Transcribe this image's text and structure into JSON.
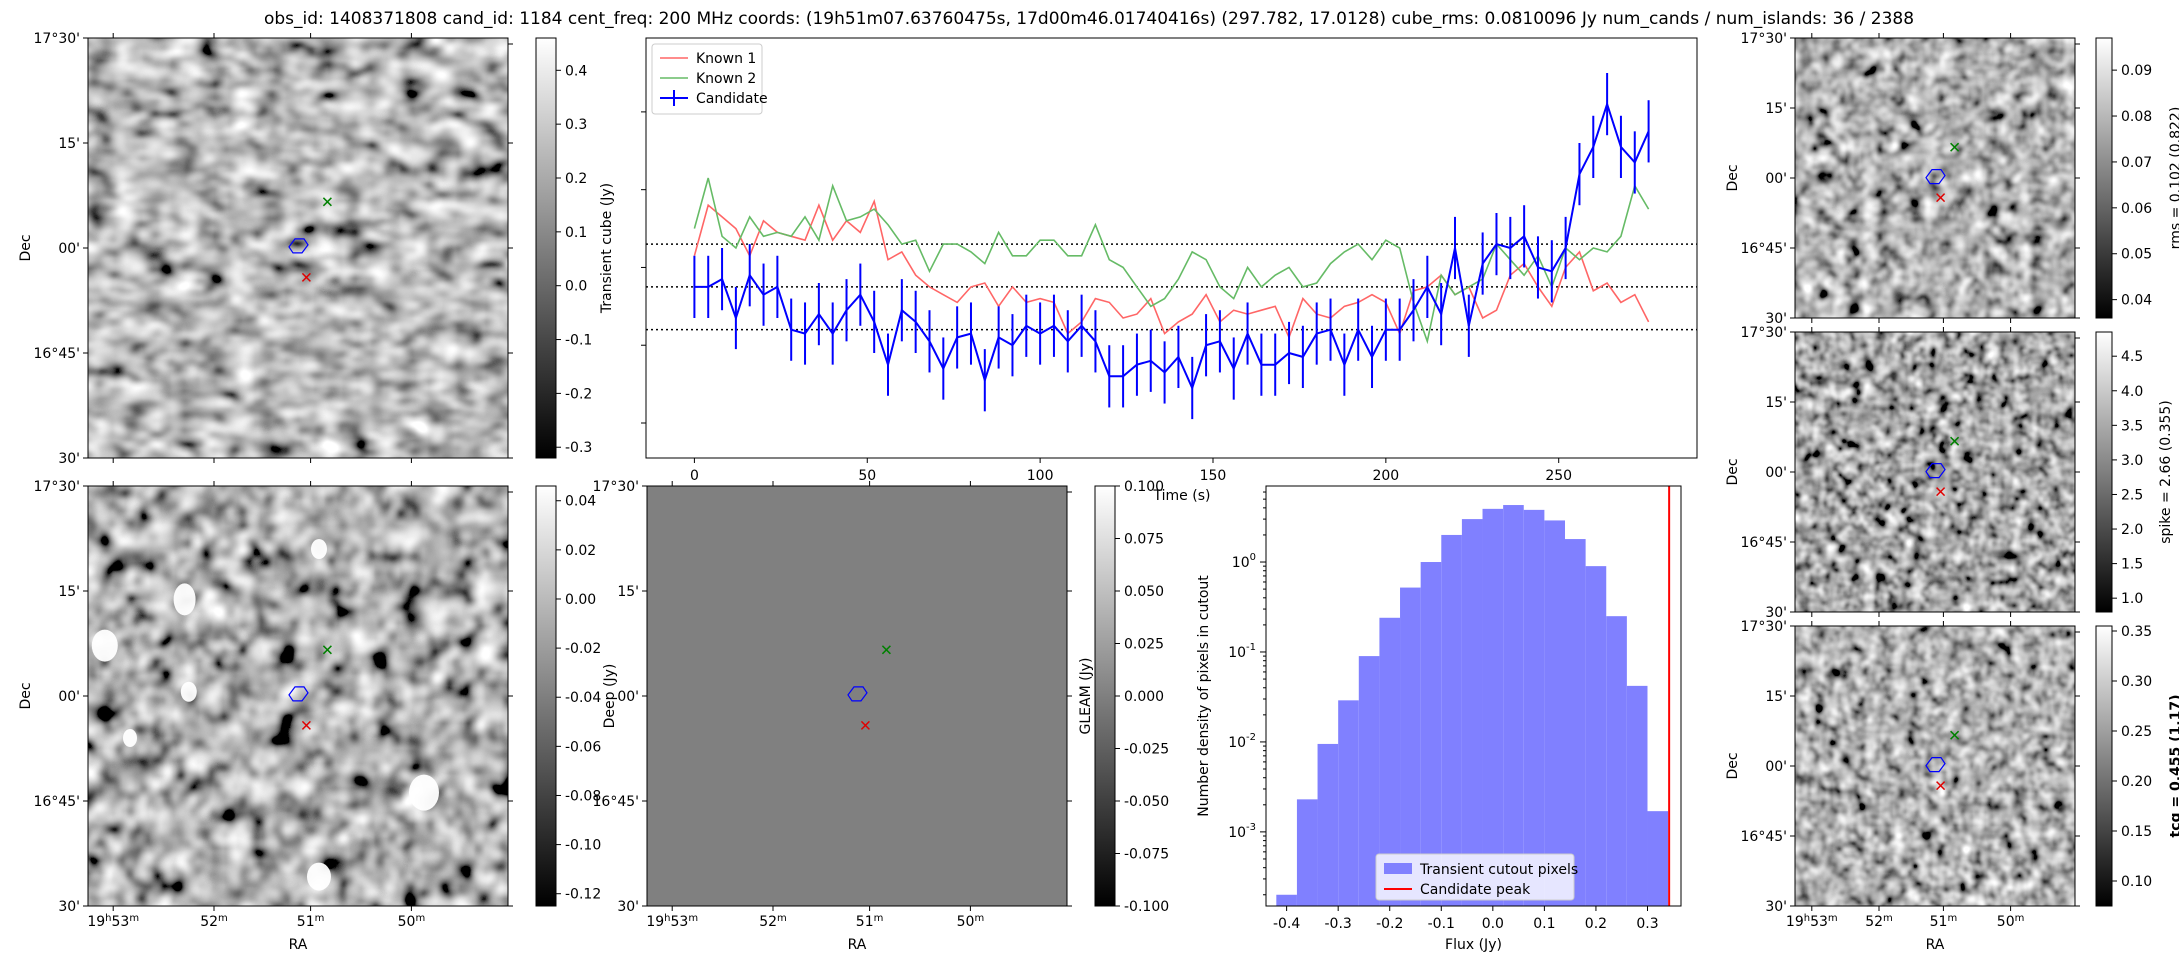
{
  "suptitle": "obs_id: 1408371808 cand_id: 1184 cent_freq: 200 MHz coords: (19h51m07.63760475s, 17d00m46.01740416s) (297.782, 17.0128) cube_rms: 0.0810096 Jy num_cands / num_islands: 36 / 2388",
  "sky_axes": {
    "dec_ticks": [
      "17°30'",
      "15'",
      "00'",
      "16°45'",
      "30'"
    ],
    "ra_ticks": [
      "19h53m",
      "52m",
      "51m",
      "50m"
    ],
    "xlabel": "RA",
    "ylabel": "Dec"
  },
  "colors": {
    "candidate": "#0000ff",
    "known1": "#ff6666",
    "known2": "#66bb66",
    "histogram": "#8080ff",
    "peak": "#ff0000",
    "marker_red": "#e00000",
    "marker_green": "#008000"
  },
  "images": {
    "transient": {
      "cbar_label": "Transient cube (Jy)",
      "cbar_ticks": [
        "0.4",
        "0.3",
        "0.2",
        "0.1",
        "0.0",
        "-0.1",
        "-0.2",
        "-0.3"
      ],
      "cmap_range": [
        -0.32,
        0.46
      ]
    },
    "deep": {
      "cbar_label": "Deep (Jy)",
      "cbar_ticks": [
        "0.04",
        "0.02",
        "0.00",
        "-0.02",
        "-0.04",
        "-0.06",
        "-0.08",
        "-0.10",
        "-0.12"
      ],
      "cmap_range": [
        -0.125,
        0.046
      ]
    },
    "gleam": {
      "cbar_label": "GLEAM (Jy)",
      "cbar_ticks": [
        "0.100",
        "0.075",
        "0.050",
        "0.025",
        "0.000",
        "-0.025",
        "-0.050",
        "-0.075",
        "-0.100"
      ],
      "cmap_range": [
        -0.1,
        0.1
      ]
    },
    "rms": {
      "cbar_label": "rms = 0.102 (0.822)",
      "cbar_ticks": [
        "0.09",
        "0.08",
        "0.07",
        "0.06",
        "0.05",
        "0.04"
      ],
      "cmap_range": [
        0.036,
        0.097
      ]
    },
    "spike": {
      "cbar_label": "spike = 2.66 (0.355)",
      "cbar_ticks": [
        "4.5",
        "4.0",
        "3.5",
        "3.0",
        "2.5",
        "2.0",
        "1.5",
        "1.0"
      ],
      "cmap_range": [
        0.8,
        4.85
      ]
    },
    "tcg": {
      "cbar_label": "tcg = 0.455 (1.17)",
      "cbar_ticks": [
        "0.35",
        "0.30",
        "0.25",
        "0.20",
        "0.15",
        "0.10"
      ],
      "cmap_range": [
        0.075,
        0.355
      ]
    }
  },
  "chart_data": [
    {
      "type": "line",
      "xlabel": "Time (s)",
      "xlim": [
        -14,
        290
      ],
      "ylim": [
        -0.44,
        0.64
      ],
      "xticks": [
        0,
        50,
        100,
        150,
        200,
        250
      ],
      "hlines": [
        -0.11,
        0.0,
        0.11
      ],
      "legend": [
        "Known 1",
        "Known 2",
        "Candidate"
      ],
      "series": [
        {
          "name": "Candidate",
          "type": "errorbar",
          "x": [
            0,
            4,
            8,
            12,
            16,
            20,
            24,
            28,
            32,
            36,
            40,
            44,
            48,
            52,
            56,
            60,
            64,
            68,
            72,
            76,
            80,
            84,
            88,
            92,
            96,
            100,
            104,
            108,
            112,
            116,
            120,
            124,
            128,
            132,
            136,
            140,
            144,
            148,
            152,
            156,
            160,
            164,
            168,
            172,
            176,
            180,
            184,
            188,
            192,
            196,
            200,
            204,
            208,
            212,
            216,
            220,
            224,
            228,
            232,
            236,
            240,
            244,
            248,
            252,
            256,
            260,
            264,
            268,
            272,
            276
          ],
          "y": [
            0.0,
            0.0,
            0.02,
            -0.08,
            0.03,
            -0.02,
            0.0,
            -0.11,
            -0.12,
            -0.07,
            -0.12,
            -0.06,
            -0.02,
            -0.09,
            -0.2,
            -0.06,
            -0.09,
            -0.14,
            -0.21,
            -0.13,
            -0.12,
            -0.24,
            -0.13,
            -0.15,
            -0.1,
            -0.12,
            -0.1,
            -0.14,
            -0.1,
            -0.14,
            -0.23,
            -0.23,
            -0.2,
            -0.19,
            -0.22,
            -0.18,
            -0.26,
            -0.15,
            -0.14,
            -0.21,
            -0.12,
            -0.2,
            -0.2,
            -0.17,
            -0.18,
            -0.12,
            -0.11,
            -0.2,
            -0.11,
            -0.18,
            -0.11,
            -0.11,
            -0.06,
            0.0,
            -0.07,
            0.1,
            -0.1,
            0.06,
            0.11,
            0.1,
            0.13,
            0.05,
            0.04,
            0.1,
            0.29,
            0.36,
            0.47,
            0.36,
            0.32,
            0.4
          ],
          "err": [
            0.08,
            0.08,
            0.08,
            0.08,
            0.08,
            0.08,
            0.08,
            0.08,
            0.08,
            0.08,
            0.08,
            0.08,
            0.08,
            0.08,
            0.08,
            0.08,
            0.08,
            0.08,
            0.08,
            0.08,
            0.08,
            0.08,
            0.08,
            0.08,
            0.08,
            0.08,
            0.08,
            0.08,
            0.08,
            0.08,
            0.08,
            0.08,
            0.08,
            0.08,
            0.08,
            0.08,
            0.08,
            0.08,
            0.08,
            0.08,
            0.08,
            0.08,
            0.08,
            0.08,
            0.08,
            0.08,
            0.08,
            0.08,
            0.08,
            0.08,
            0.08,
            0.08,
            0.08,
            0.08,
            0.08,
            0.08,
            0.08,
            0.08,
            0.08,
            0.08,
            0.08,
            0.08,
            0.08,
            0.08,
            0.08,
            0.08,
            0.08,
            0.08,
            0.08,
            0.08
          ]
        },
        {
          "name": "Known 1",
          "type": "line",
          "x": [
            0,
            4,
            8,
            12,
            16,
            20,
            24,
            28,
            32,
            36,
            40,
            44,
            48,
            52,
            56,
            60,
            64,
            68,
            72,
            76,
            80,
            84,
            88,
            92,
            96,
            100,
            104,
            108,
            112,
            116,
            120,
            124,
            128,
            132,
            136,
            140,
            144,
            148,
            152,
            156,
            160,
            164,
            168,
            172,
            176,
            180,
            184,
            188,
            192,
            196,
            200,
            204,
            208,
            212,
            216,
            220,
            224,
            228,
            232,
            236,
            240,
            244,
            248,
            252,
            256,
            260,
            264,
            268,
            272,
            276
          ],
          "y": [
            0.08,
            0.21,
            0.18,
            0.15,
            0.08,
            0.17,
            0.14,
            0.13,
            0.12,
            0.21,
            0.12,
            0.17,
            0.14,
            0.22,
            0.07,
            0.09,
            0.03,
            0.0,
            -0.02,
            -0.04,
            0.0,
            0.01,
            -0.05,
            0.0,
            -0.04,
            -0.03,
            -0.04,
            -0.12,
            -0.09,
            -0.03,
            -0.04,
            -0.08,
            -0.07,
            -0.03,
            -0.12,
            -0.09,
            -0.07,
            -0.02,
            -0.09,
            -0.06,
            -0.07,
            -0.06,
            -0.05,
            -0.13,
            -0.03,
            -0.07,
            -0.08,
            -0.05,
            -0.04,
            -0.02,
            -0.04,
            -0.12,
            -0.01,
            0.0,
            0.03,
            -0.02,
            0.0,
            -0.08,
            -0.06,
            0.03,
            0.06,
            0.0,
            -0.05,
            0.05,
            0.09,
            -0.01,
            0.01,
            -0.04,
            -0.02,
            -0.09
          ]
        },
        {
          "name": "Known 2",
          "type": "line",
          "x": [
            0,
            4,
            8,
            12,
            16,
            20,
            24,
            28,
            32,
            36,
            40,
            44,
            48,
            52,
            56,
            60,
            64,
            68,
            72,
            76,
            80,
            84,
            88,
            92,
            96,
            100,
            104,
            108,
            112,
            116,
            120,
            124,
            128,
            132,
            136,
            140,
            144,
            148,
            152,
            156,
            160,
            164,
            168,
            172,
            176,
            180,
            184,
            188,
            192,
            196,
            200,
            204,
            208,
            212,
            216,
            220,
            224,
            228,
            232,
            236,
            240,
            244,
            248,
            252,
            256,
            260,
            264,
            268,
            272,
            276
          ],
          "y": [
            0.15,
            0.28,
            0.13,
            0.1,
            0.18,
            0.13,
            0.14,
            0.13,
            0.18,
            0.12,
            0.26,
            0.17,
            0.18,
            0.2,
            0.16,
            0.11,
            0.12,
            0.04,
            0.11,
            0.11,
            0.09,
            0.06,
            0.14,
            0.08,
            0.08,
            0.12,
            0.12,
            0.08,
            0.08,
            0.16,
            0.07,
            0.05,
            0.0,
            -0.05,
            -0.03,
            0.02,
            0.09,
            0.07,
            0.0,
            -0.03,
            0.05,
            0.0,
            0.03,
            0.05,
            0.0,
            0.01,
            0.06,
            0.09,
            0.11,
            0.07,
            0.12,
            0.1,
            -0.04,
            -0.14,
            0.03,
            -0.02,
            0.0,
            0.02,
            0.11,
            0.07,
            0.03,
            0.08,
            0.0,
            0.1,
            0.07,
            0.1,
            0.09,
            0.13,
            0.26,
            0.2
          ]
        }
      ]
    },
    {
      "type": "bar",
      "ylabel": "Number density of pixels in cutout",
      "xlabel": "Flux (Jy)",
      "yscale": "log",
      "ylim": [
        0.00015,
        7
      ],
      "xlim": [
        -0.44,
        0.365
      ],
      "xticks": [
        "-0.4",
        "-0.3",
        "-0.2",
        "-0.1",
        "0.0",
        "0.1",
        "0.2",
        "0.3"
      ],
      "yticks": [
        "10^0",
        "10^-1",
        "10^-2",
        "10^-3"
      ],
      "bin_edges": [
        -0.42,
        -0.38,
        -0.34,
        -0.3,
        -0.26,
        -0.22,
        -0.18,
        -0.14,
        -0.1,
        -0.06,
        -0.02,
        0.02,
        0.06,
        0.1,
        0.14,
        0.18,
        0.22,
        0.26,
        0.3,
        0.34
      ],
      "values": [
        0.0002,
        0.0023,
        0.0095,
        0.029,
        0.09,
        0.24,
        0.52,
        1.0,
        2.0,
        3.0,
        3.9,
        4.3,
        3.8,
        2.9,
        1.8,
        0.9,
        0.25,
        0.042,
        0.0017
      ],
      "peak": 0.342,
      "legend": [
        "Transient cutout pixels",
        "Candidate peak"
      ]
    }
  ]
}
